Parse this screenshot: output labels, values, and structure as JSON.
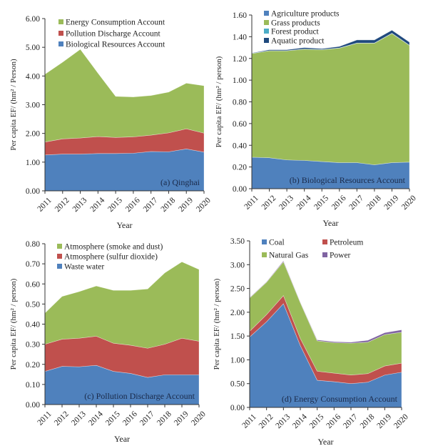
{
  "chart_data": [
    {
      "type": "area",
      "stacked": true,
      "panel_label": "(a) Qinghai",
      "xlabel": "Year",
      "ylabel": "Per capita EF/ (hm² / Person)",
      "ylim": [
        0,
        6
      ],
      "ystep": 1,
      "categories": [
        "2011",
        "2012",
        "2013",
        "2014",
        "2015",
        "2016",
        "2017",
        "2018",
        "2019",
        "2020"
      ],
      "series": [
        {
          "name": "Biological Resources Account",
          "color": "#4f81bd",
          "values": [
            1.25,
            1.28,
            1.28,
            1.3,
            1.3,
            1.31,
            1.37,
            1.36,
            1.46,
            1.35
          ]
        },
        {
          "name": "Pollution Discharge Account",
          "color": "#c0504d",
          "values": [
            0.45,
            0.53,
            0.56,
            0.59,
            0.56,
            0.57,
            0.57,
            0.66,
            0.7,
            0.66
          ]
        },
        {
          "name": "Energy Consumption Account",
          "color": "#9bbb59",
          "values": [
            2.36,
            2.67,
            3.09,
            2.21,
            1.43,
            1.39,
            1.38,
            1.42,
            1.59,
            1.65
          ]
        }
      ],
      "legend_order": [
        2,
        1,
        0
      ],
      "legend": "top-left"
    },
    {
      "type": "area",
      "stacked": true,
      "panel_label": "(b) Biological Resources Account",
      "xlabel": "Year",
      "ylabel": "Per capita EF/ (hm² / person)",
      "ylim": [
        0,
        1.6
      ],
      "ystep": 0.2,
      "categories": [
        "2011",
        "2012",
        "2013",
        "2014",
        "2015",
        "2016",
        "2017",
        "2018",
        "2019",
        "2020"
      ],
      "series": [
        {
          "name": "Agriculture products",
          "color": "#4f81bd",
          "values": [
            0.29,
            0.285,
            0.265,
            0.26,
            0.25,
            0.24,
            0.24,
            0.22,
            0.24,
            0.245
          ]
        },
        {
          "name": "Grass products",
          "color": "#9bbb59",
          "values": [
            0.955,
            0.985,
            1.005,
            1.025,
            1.03,
            1.055,
            1.1,
            1.12,
            1.19,
            1.075
          ]
        },
        {
          "name": "Forest product",
          "color": "#4bacc6",
          "values": [
            0.002,
            0.002,
            0.002,
            0.002,
            0.002,
            0.002,
            0.002,
            0.002,
            0.002,
            0.002
          ]
        },
        {
          "name": "Aquatic product",
          "color": "#1f497d",
          "values": [
            0.003,
            0.008,
            0.008,
            0.013,
            0.008,
            0.013,
            0.028,
            0.028,
            0.028,
            0.028
          ]
        }
      ],
      "legend_order": [
        0,
        1,
        2,
        3
      ],
      "legend": "top-left"
    },
    {
      "type": "area",
      "stacked": true,
      "panel_label": "(c) Pollution Discharge Account",
      "xlabel": "Year",
      "ylabel": "Per capita EF/ (hm² / person)",
      "ylim": [
        0,
        0.8
      ],
      "ystep": 0.1,
      "categories": [
        "2011",
        "2012",
        "2013",
        "2014",
        "2015",
        "2016",
        "2017",
        "2018",
        "2019",
        "2020"
      ],
      "series": [
        {
          "name": "Waste water",
          "color": "#4f81bd",
          "values": [
            0.165,
            0.19,
            0.188,
            0.195,
            0.165,
            0.155,
            0.135,
            0.148,
            0.148,
            0.148
          ]
        },
        {
          "name": "Atmosphere (sulfur dioxide)",
          "color": "#c0504d",
          "values": [
            0.135,
            0.135,
            0.142,
            0.145,
            0.14,
            0.14,
            0.145,
            0.152,
            0.182,
            0.167
          ]
        },
        {
          "name": "Atmosphere (smoke and dust)",
          "color": "#9bbb59",
          "values": [
            0.155,
            0.213,
            0.232,
            0.25,
            0.263,
            0.273,
            0.295,
            0.355,
            0.38,
            0.357
          ]
        }
      ],
      "legend_order": [
        2,
        1,
        0
      ],
      "legend": "top-left"
    },
    {
      "type": "area",
      "stacked": true,
      "panel_label": "(d) Energy Consumption Account",
      "xlabel": "Year",
      "ylabel": "Per capita EF/ (hm² / person)",
      "ylim": [
        0,
        3.5
      ],
      "ystep": 0.5,
      "categories": [
        "2011",
        "2012",
        "2013",
        "2014",
        "2015",
        "2016",
        "2017",
        "2018",
        "2019",
        "2020"
      ],
      "series": [
        {
          "name": "Coal",
          "color": "#4f81bd",
          "values": [
            1.48,
            1.8,
            2.18,
            1.3,
            0.57,
            0.54,
            0.5,
            0.53,
            0.68,
            0.74
          ]
        },
        {
          "name": "Petroleum",
          "color": "#c0504d",
          "values": [
            0.12,
            0.15,
            0.17,
            0.15,
            0.19,
            0.18,
            0.18,
            0.18,
            0.19,
            0.19
          ]
        },
        {
          "name": "Natural Gas",
          "color": "#9bbb59",
          "values": [
            0.7,
            0.68,
            0.71,
            0.75,
            0.64,
            0.64,
            0.67,
            0.66,
            0.66,
            0.65
          ]
        },
        {
          "name": "Power",
          "color": "#8064a2",
          "values": [
            0.01,
            0.01,
            0.02,
            0.01,
            0.02,
            0.02,
            0.02,
            0.04,
            0.04,
            0.05
          ]
        }
      ],
      "legend_order": [
        0,
        1,
        2,
        3
      ],
      "legend": "top-left"
    }
  ]
}
